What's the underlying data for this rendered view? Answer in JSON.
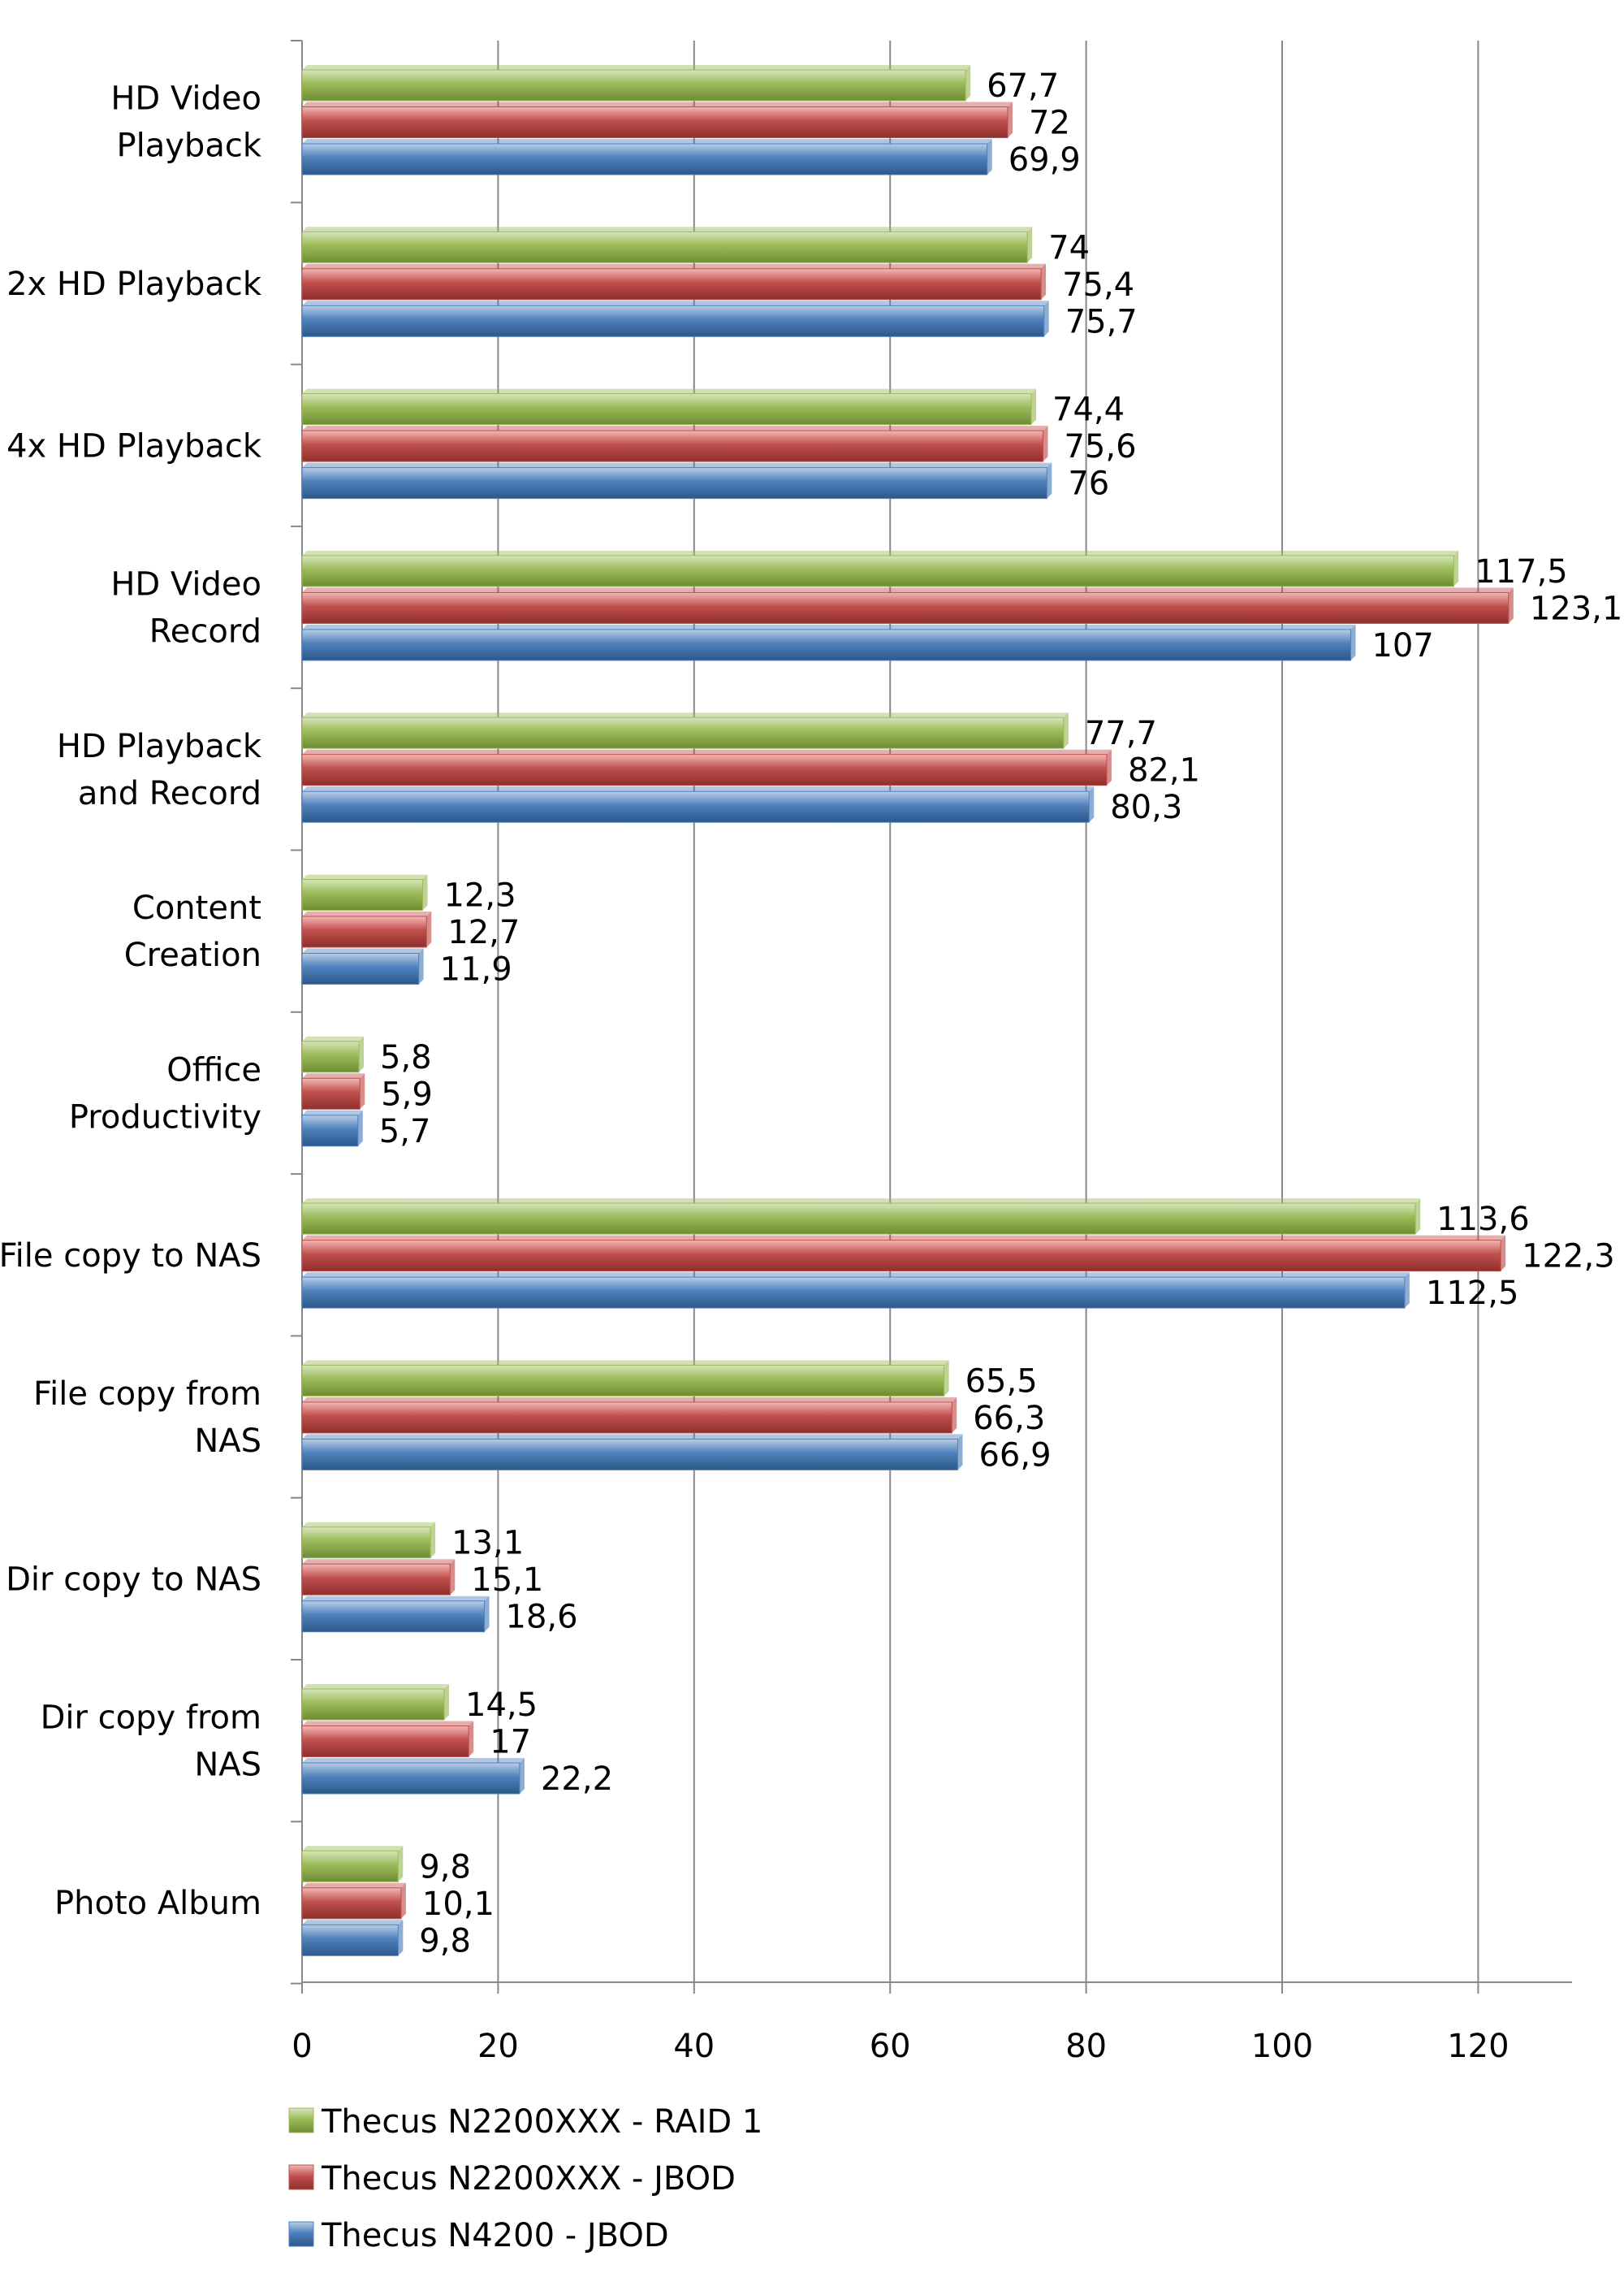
{
  "chart_data": {
    "type": "bar",
    "orientation": "horizontal",
    "title": "",
    "xlabel": "",
    "ylabel": "",
    "xlim": [
      0,
      130
    ],
    "xticks": [
      0,
      20,
      40,
      60,
      80,
      100,
      120
    ],
    "grid": "vertical",
    "legend_position": "bottom-left",
    "categories": [
      [
        "HD Video",
        "Playback"
      ],
      [
        "2x HD Playback"
      ],
      [
        "4x HD Playback"
      ],
      [
        "HD Video",
        "Record"
      ],
      [
        "HD Playback",
        "and Record"
      ],
      [
        "Content",
        "Creation"
      ],
      [
        "Office",
        "Productivity"
      ],
      [
        "File copy to NAS"
      ],
      [
        "File copy from",
        "NAS"
      ],
      [
        "Dir copy to NAS"
      ],
      [
        "Dir copy from",
        "NAS"
      ],
      [
        "Photo Album"
      ]
    ],
    "series": [
      {
        "name": "Thecus N2200XXX - RAID 1",
        "color": "#9BBB59",
        "values": [
          67.7,
          74,
          74.4,
          117.5,
          77.7,
          12.3,
          5.8,
          113.6,
          65.5,
          13.1,
          14.5,
          9.8
        ],
        "labels": [
          "67,7",
          "74",
          "74,4",
          "117,5",
          "77,7",
          "12,3",
          "5,8",
          "113,6",
          "65,5",
          "13,1",
          "14,5",
          "9,8"
        ]
      },
      {
        "name": "Thecus N2200XXX - JBOD",
        "color": "#C0504D",
        "values": [
          72,
          75.4,
          75.6,
          123.1,
          82.1,
          12.7,
          5.9,
          122.3,
          66.3,
          15.1,
          17,
          10.1
        ],
        "labels": [
          "72",
          "75,4",
          "75,6",
          "123,1",
          "82,1",
          "12,7",
          "5,9",
          "122,3",
          "66,3",
          "15,1",
          "17",
          "10,1"
        ]
      },
      {
        "name": "Thecus N4200 - JBOD",
        "color": "#4F81BD",
        "values": [
          69.9,
          75.7,
          76,
          107,
          80.3,
          11.9,
          5.7,
          112.5,
          66.9,
          18.6,
          22.2,
          9.8
        ],
        "labels": [
          "69,9",
          "75,7",
          "76",
          "107",
          "80,3",
          "11,9",
          "5,7",
          "112,5",
          "66,9",
          "18,6",
          "22,2",
          "9,8"
        ]
      }
    ]
  }
}
